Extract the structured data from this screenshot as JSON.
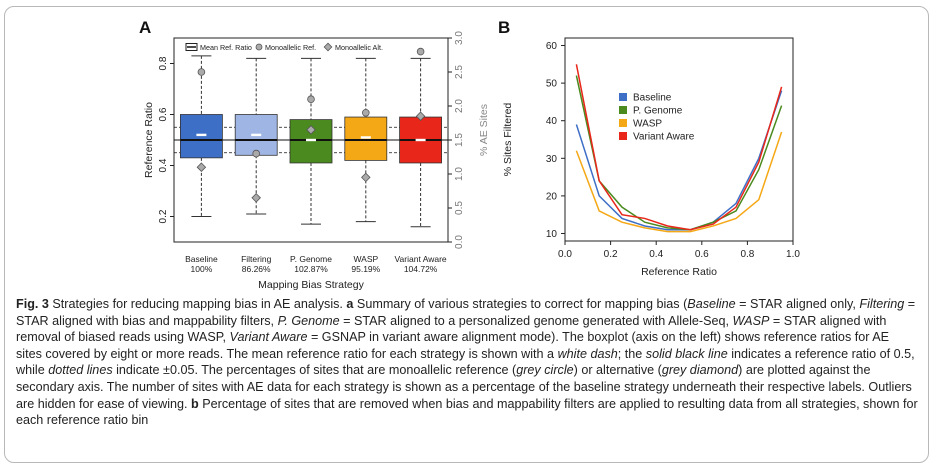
{
  "figure": {
    "panel_a_label": "A",
    "panel_b_label": "B"
  },
  "colors": {
    "baseline": "#3d6fc6",
    "filtering": "#9fb5e4",
    "p_genome": "#4a8a1e",
    "wasp": "#f5a816",
    "variant_aware": "#e8261a"
  },
  "chart_data": [
    {
      "type": "box",
      "panel": "A",
      "xlabel": "Mapping Bias Strategy",
      "ylabel": "Reference Ratio",
      "y2label": "% AE Sites",
      "ylim": [
        0.1,
        0.9
      ],
      "y2lim": [
        0.0,
        3.0
      ],
      "yticks": [
        "0.2",
        "0.4",
        "0.6",
        "0.8"
      ],
      "y2ticks": [
        "0.0",
        "0.5",
        "1.0",
        "1.5",
        "2.0",
        "2.5",
        "3.0"
      ],
      "legend": [
        "Mean Ref. Ratio",
        "Monoallelic Ref.",
        "Monoallelic Alt."
      ],
      "legend_position": "top",
      "reference_line": 0.5,
      "dotted_lines": [
        0.45,
        0.55
      ],
      "categories": [
        "Baseline",
        "Filtering",
        "P. Genome",
        "WASP",
        "Variant Aware"
      ],
      "sublabels": [
        "100%",
        "86.26%",
        "102.87%",
        "95.19%",
        "104.72%"
      ],
      "boxes": [
        {
          "name": "Baseline",
          "whisker_low": 0.2,
          "q1": 0.43,
          "median": 0.5,
          "q3": 0.6,
          "whisker_high": 0.83,
          "mean": 0.52,
          "monoallelic_ref_pct": 2.5,
          "monoallelic_alt_pct": 1.1
        },
        {
          "name": "Filtering",
          "whisker_low": 0.21,
          "q1": 0.44,
          "median": 0.5,
          "q3": 0.6,
          "whisker_high": 0.82,
          "mean": 0.52,
          "monoallelic_ref_pct": 1.3,
          "monoallelic_alt_pct": 0.65
        },
        {
          "name": "P. Genome",
          "whisker_low": 0.17,
          "q1": 0.41,
          "median": 0.5,
          "q3": 0.58,
          "whisker_high": 0.82,
          "mean": 0.5,
          "monoallelic_ref_pct": 2.1,
          "monoallelic_alt_pct": 1.65
        },
        {
          "name": "WASP",
          "whisker_low": 0.18,
          "q1": 0.42,
          "median": 0.5,
          "q3": 0.59,
          "whisker_high": 0.82,
          "mean": 0.51,
          "monoallelic_ref_pct": 1.9,
          "monoallelic_alt_pct": 0.95
        },
        {
          "name": "Variant Aware",
          "whisker_low": 0.16,
          "q1": 0.41,
          "median": 0.5,
          "q3": 0.59,
          "whisker_high": 0.82,
          "mean": 0.5,
          "monoallelic_ref_pct": 2.8,
          "monoallelic_alt_pct": 1.85
        }
      ]
    },
    {
      "type": "line",
      "panel": "B",
      "xlabel": "Reference Ratio",
      "ylabel": "% Sites Filtered",
      "xlim": [
        0.0,
        1.0
      ],
      "ylim": [
        8,
        62
      ],
      "xticks": [
        "0.0",
        "0.2",
        "0.4",
        "0.6",
        "0.8",
        "1.0"
      ],
      "yticks": [
        "10",
        "20",
        "30",
        "40",
        "50",
        "60"
      ],
      "legend_position": "top-center",
      "x": [
        0.05,
        0.15,
        0.25,
        0.35,
        0.45,
        0.55,
        0.65,
        0.75,
        0.85,
        0.95
      ],
      "series": [
        {
          "name": "Baseline",
          "color": "#3d6fc6",
          "values": [
            39,
            20,
            14,
            12,
            11,
            11,
            13,
            18,
            30,
            48
          ]
        },
        {
          "name": "P. Genome",
          "color": "#4a8a1e",
          "values": [
            52,
            24,
            17,
            13,
            11.5,
            11,
            13,
            16,
            27,
            44
          ]
        },
        {
          "name": "WASP",
          "color": "#f5a816",
          "values": [
            32,
            16,
            13,
            11.5,
            10.5,
            10.5,
            12,
            14,
            19,
            37
          ]
        },
        {
          "name": "Variant Aware",
          "color": "#e8261a",
          "values": [
            55,
            24,
            15,
            14,
            12,
            11,
            12.5,
            17,
            29,
            49
          ]
        }
      ]
    }
  ],
  "caption": {
    "fig_label": "Fig. 3",
    "p1": " Strategies for reducing mapping bias in AE analysis. ",
    "a_label": "a",
    "p2": " Summary of various strategies to correct for mapping bias (",
    "baseline_term": "Baseline",
    "p3": " = STAR aligned only, ",
    "filtering_term": "Filtering",
    "p4": " = STAR aligned with bias and mappability filters, ",
    "pgenome_term": "P. Genome",
    "p5": " = STAR aligned to a personalized genome generated with Allele-Seq, ",
    "wasp_term": "WASP",
    "p6": " = STAR aligned with removal of biased reads using WASP, ",
    "va_term": "Variant Aware",
    "p7": " = GSNAP in variant aware alignment mode). The boxplot (axis on the left) shows reference ratios for AE sites covered by eight or more reads. The mean reference ratio for each strategy is shown with a ",
    "white_dash": "white dash",
    "p8": "; the ",
    "solid_line": "solid black line",
    "p9": " indicates a reference ratio of 0.5, while ",
    "dotted_lines": "dotted lines",
    "p10": " indicate ±0.05. The percentages of sites that are monoallelic reference (",
    "grey_circle": "grey circle",
    "p11": ") or alternative (",
    "grey_diamond": "grey diamond",
    "p12": ") are plotted against the secondary axis. The number of sites with AE data for each strategy is shown as a percentage of the baseline strategy underneath their respective labels. Outliers are hidden for ease of viewing. ",
    "b_label": "b",
    "p13": " Percentage of sites that are removed when bias and mappability filters are applied to resulting data from all strategies, shown for each reference ratio bin"
  }
}
